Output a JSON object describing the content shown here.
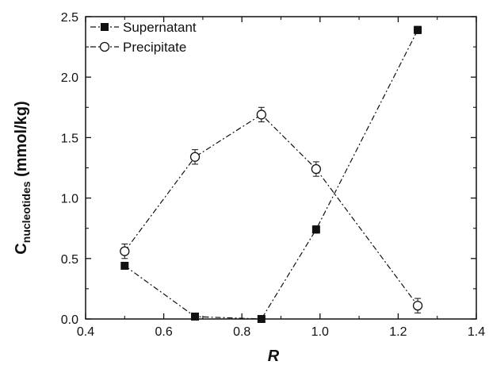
{
  "chart_data": {
    "type": "line",
    "xlabel": "R",
    "ylabel_main": "C",
    "ylabel_sub": "nucleotides",
    "ylabel_unit": " (mmol/kg)",
    "xlim": [
      0.4,
      1.4
    ],
    "ylim": [
      0.0,
      2.5
    ],
    "xticks": [
      0.4,
      0.6,
      0.8,
      1.0,
      1.2,
      1.4
    ],
    "xtick_labels": [
      "0.4",
      "0.6",
      "0.8",
      "1.0",
      "1.2",
      "1.4"
    ],
    "yticks": [
      0.0,
      0.5,
      1.0,
      1.5,
      2.0,
      2.5
    ],
    "ytick_labels": [
      "0.0",
      "0.5",
      "1.0",
      "1.5",
      "2.0",
      "2.5"
    ],
    "grid": false,
    "legend_position": "top-left",
    "series": [
      {
        "name": "Supernatant",
        "marker": "filled-square",
        "line_style": "dash-dot",
        "color": "#111111",
        "x": [
          0.5,
          0.68,
          0.85,
          0.99,
          1.25
        ],
        "y": [
          0.44,
          0.02,
          0.0,
          0.74,
          2.39
        ],
        "err": [
          0.02,
          0.01,
          0.01,
          0.03,
          0.03
        ]
      },
      {
        "name": "Precipitate",
        "marker": "open-circle",
        "line_style": "dash-dot",
        "color": "#111111",
        "x": [
          0.5,
          0.68,
          0.85,
          0.99,
          1.25
        ],
        "y": [
          0.56,
          1.34,
          1.69,
          1.24,
          0.11
        ],
        "err": [
          0.06,
          0.06,
          0.06,
          0.06,
          0.06
        ]
      }
    ]
  }
}
